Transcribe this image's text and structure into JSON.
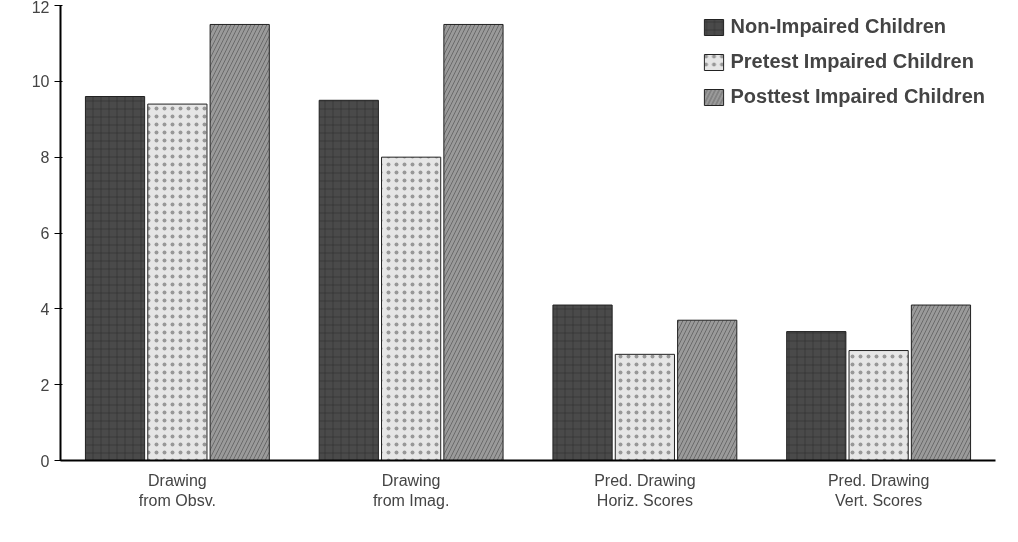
{
  "chart_data": {
    "type": "bar",
    "categories": [
      "Drawing\nfrom Obsv.",
      "Drawing\nfrom Imag.",
      "Pred. Drawing\nHoriz. Scores",
      "Pred. Drawing\nVert. Scores"
    ],
    "series": [
      {
        "name": "Non-Impaired Children",
        "color": "#4a4a4a",
        "values": [
          9.6,
          9.5,
          4.1,
          3.4
        ]
      },
      {
        "name": "Pretest Impaired Children",
        "color": "#e6e6e6",
        "values": [
          9.4,
          8.0,
          2.8,
          2.9
        ]
      },
      {
        "name": "Posttest Impaired Children",
        "color": "#9a9a9a",
        "values": [
          11.5,
          11.5,
          3.7,
          4.1
        ]
      }
    ],
    "ylim": [
      0,
      12
    ],
    "yticks": [
      0,
      2,
      4,
      6,
      8,
      10,
      12
    ],
    "grid": false,
    "legend": "top right"
  }
}
